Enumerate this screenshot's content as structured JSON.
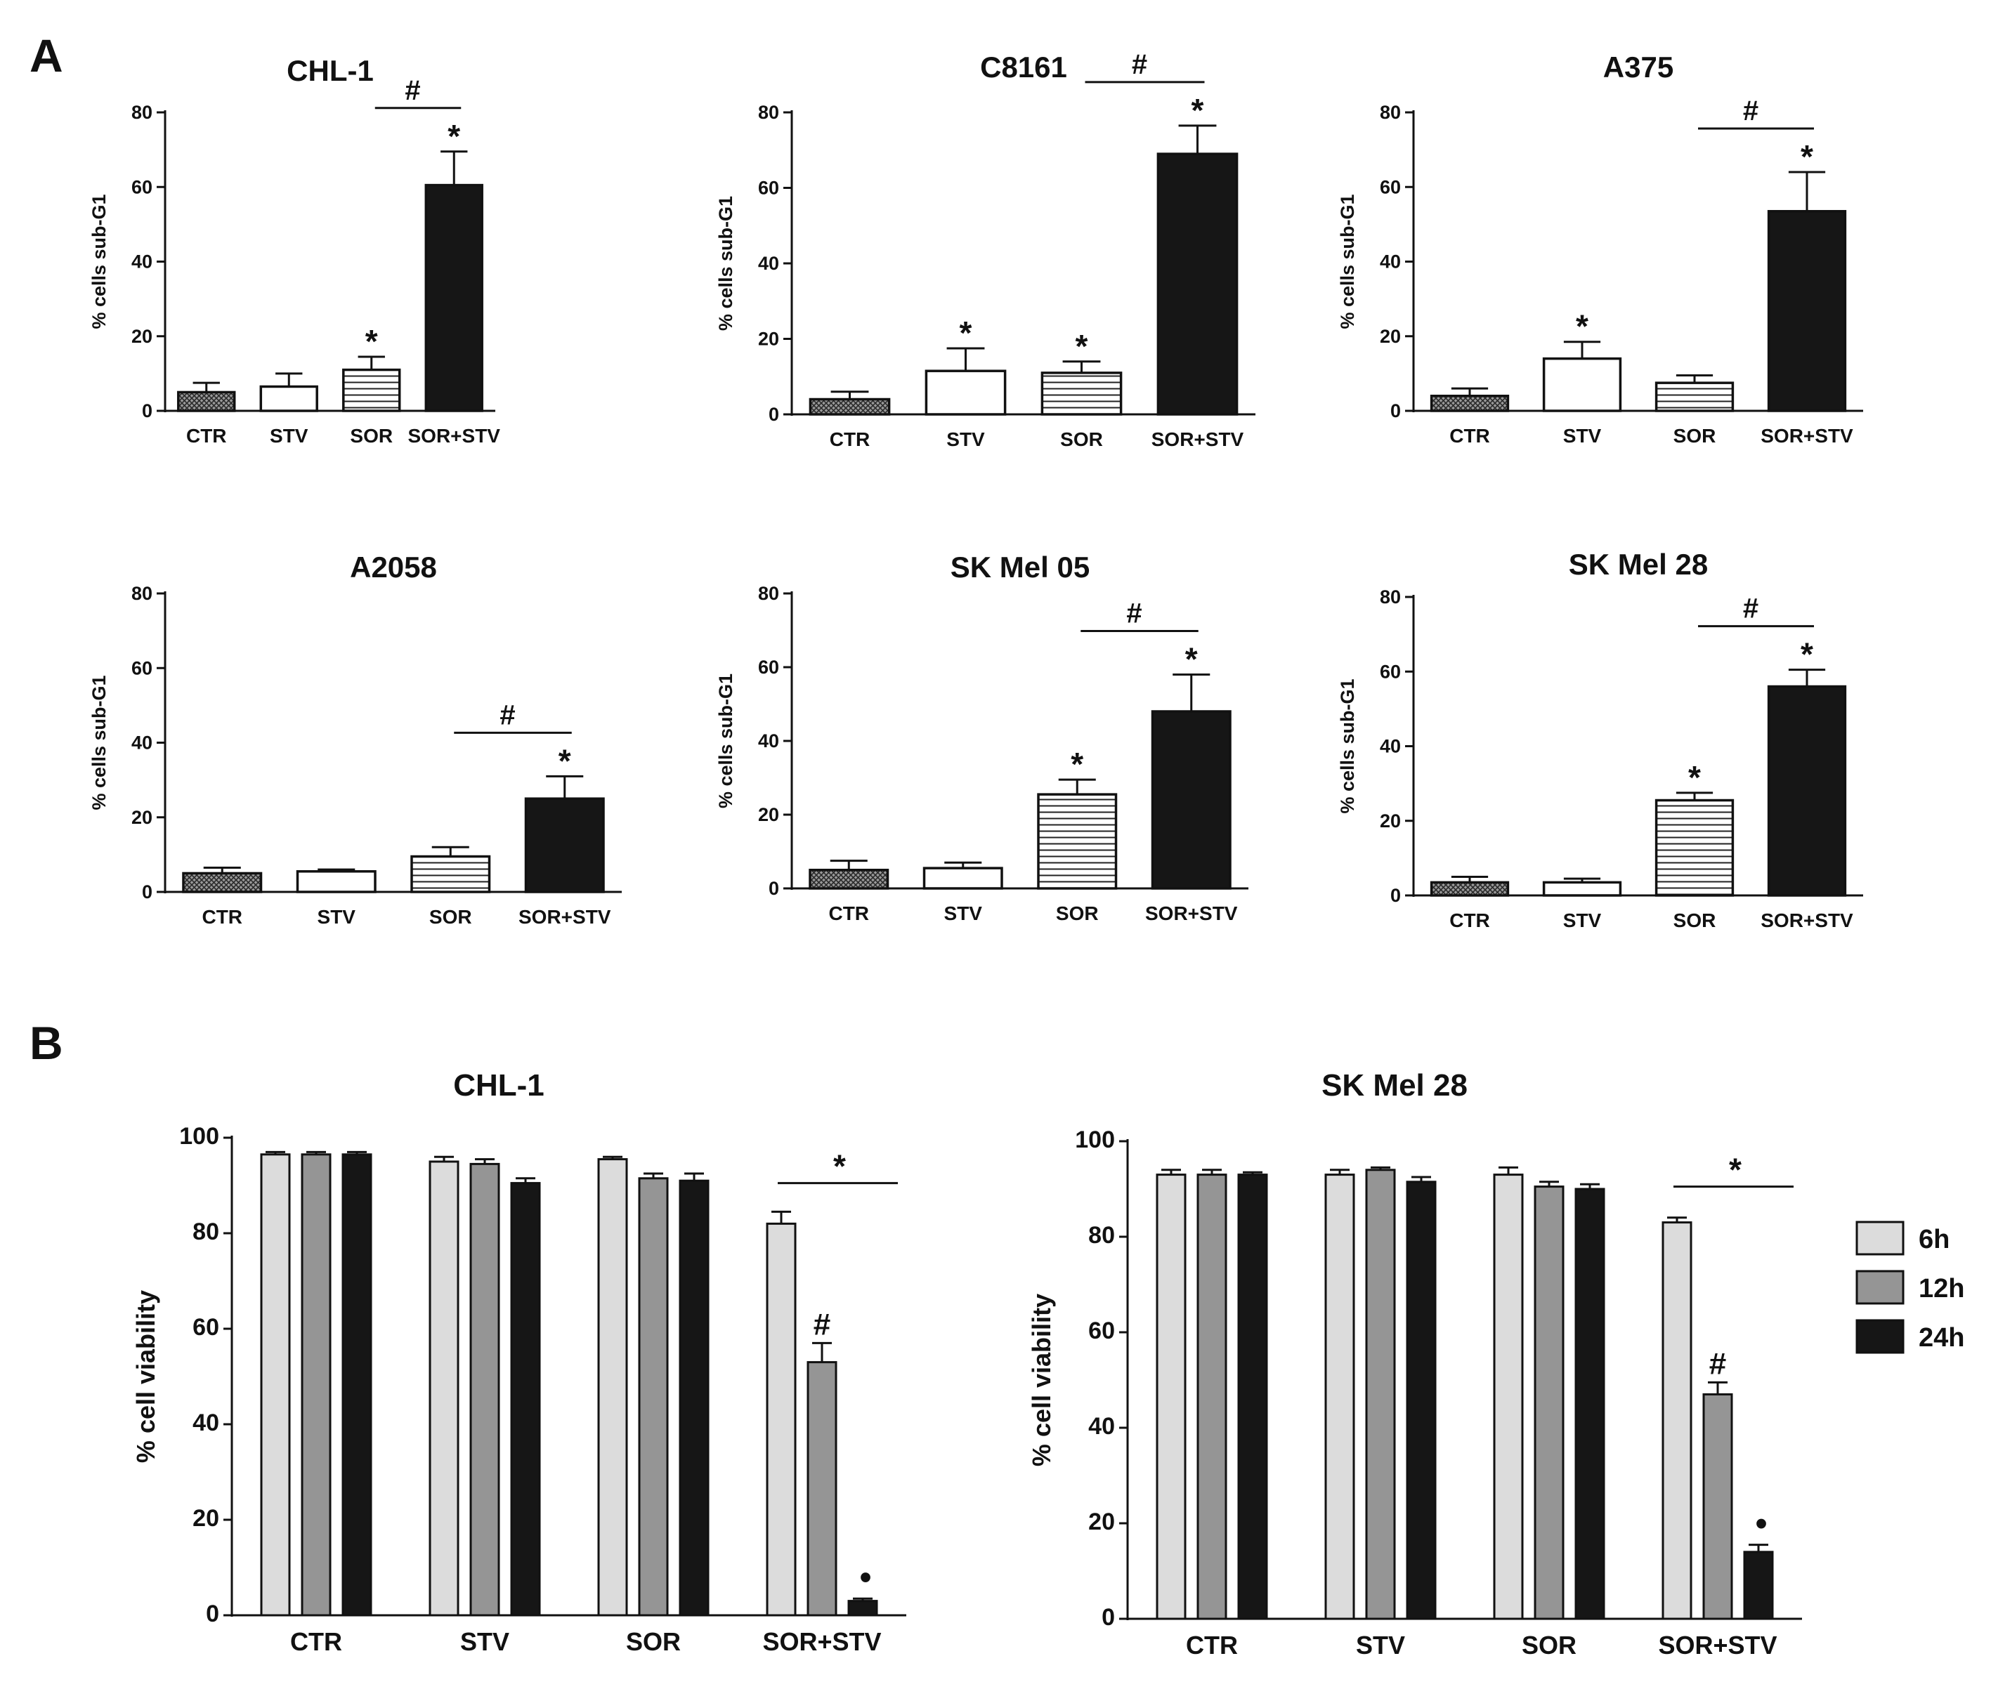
{
  "panel_a_label": "A",
  "panel_b_label": "B",
  "colors": {
    "ink": "#111111",
    "black_bar": "#161616",
    "white_bar": "#ffffff",
    "light_gray": "#dcdcdc",
    "mid_gray": "#959595"
  },
  "chart_data": [
    {
      "id": "a1",
      "type": "bar",
      "title": "CHL-1",
      "ylabel": "% cells sub-G1",
      "ylim": [
        0,
        80
      ],
      "yticks": [
        0,
        20,
        40,
        60,
        80
      ],
      "categories": [
        "CTR",
        "STV",
        "SOR",
        "SOR+STV"
      ],
      "values": [
        5,
        6.5,
        11,
        60.5
      ],
      "errors": [
        2.5,
        3.5,
        3.5,
        9
      ],
      "fills": [
        "crosshatch",
        "white",
        "stripes",
        "black"
      ],
      "star_marks": [
        "",
        "",
        "*",
        "*"
      ],
      "hash": {
        "text": "#",
        "from": 2,
        "to": 3
      }
    },
    {
      "id": "a2",
      "type": "bar",
      "title": "C8161",
      "ylabel": "% cells sub-G1",
      "ylim": [
        0,
        80
      ],
      "yticks": [
        0,
        20,
        40,
        60,
        80
      ],
      "categories": [
        "CTR",
        "STV",
        "SOR",
        "SOR+STV"
      ],
      "values": [
        4,
        11.5,
        11,
        69
      ],
      "errors": [
        2,
        6,
        3,
        7.5
      ],
      "fills": [
        "crosshatch",
        "white",
        "stripes",
        "black"
      ],
      "star_marks": [
        "",
        "*",
        "*",
        "*"
      ],
      "hash": {
        "text": "#",
        "from": 2,
        "to": 3
      }
    },
    {
      "id": "a3",
      "type": "bar",
      "title": "A375",
      "ylabel": "% cells sub-G1",
      "ylim": [
        0,
        80
      ],
      "yticks": [
        0,
        20,
        40,
        60,
        80
      ],
      "categories": [
        "CTR",
        "STV",
        "SOR",
        "SOR+STV"
      ],
      "values": [
        4,
        14,
        7.5,
        53.5
      ],
      "errors": [
        2,
        4.5,
        2,
        10.5
      ],
      "fills": [
        "crosshatch",
        "white",
        "stripes",
        "black"
      ],
      "star_marks": [
        "",
        "*",
        "",
        "*"
      ],
      "hash": {
        "text": "#",
        "from": 2,
        "to": 3
      }
    },
    {
      "id": "a4",
      "type": "bar",
      "title": "A2058",
      "ylabel": "% cells sub-G1",
      "ylim": [
        0,
        80
      ],
      "yticks": [
        0,
        20,
        40,
        60,
        80
      ],
      "categories": [
        "CTR",
        "STV",
        "SOR",
        "SOR+STV"
      ],
      "values": [
        5,
        5.5,
        9.5,
        25
      ],
      "errors": [
        1.5,
        0.5,
        2.5,
        6
      ],
      "fills": [
        "crosshatch",
        "white",
        "stripes",
        "black"
      ],
      "star_marks": [
        "",
        "",
        "",
        "*"
      ],
      "hash": {
        "text": "#",
        "from": 2,
        "to": 3
      }
    },
    {
      "id": "a5",
      "type": "bar",
      "title": "SK Mel 05",
      "ylabel": "% cells sub-G1",
      "ylim": [
        0,
        80
      ],
      "yticks": [
        0,
        20,
        40,
        60,
        80
      ],
      "categories": [
        "CTR",
        "STV",
        "SOR",
        "SOR+STV"
      ],
      "values": [
        5,
        5.5,
        25.5,
        48
      ],
      "errors": [
        2.5,
        1.5,
        4,
        10
      ],
      "fills": [
        "crosshatch",
        "white",
        "stripes",
        "black"
      ],
      "star_marks": [
        "",
        "",
        "*",
        "*"
      ],
      "hash": {
        "text": "#",
        "from": 2,
        "to": 3
      }
    },
    {
      "id": "a6",
      "type": "bar",
      "title": "SK Mel 28",
      "ylabel": "% cells sub-G1",
      "ylim": [
        0,
        80
      ],
      "yticks": [
        0,
        20,
        40,
        60,
        80
      ],
      "categories": [
        "CTR",
        "STV",
        "SOR",
        "SOR+STV"
      ],
      "values": [
        3.5,
        3.5,
        25.5,
        56
      ],
      "errors": [
        1.5,
        1,
        2,
        4.5
      ],
      "fills": [
        "crosshatch",
        "white",
        "stripes",
        "black"
      ],
      "star_marks": [
        "",
        "",
        "*",
        "*"
      ],
      "hash": {
        "text": "#",
        "from": 2,
        "to": 3
      }
    },
    {
      "id": "b1",
      "type": "bar",
      "title": "CHL-1",
      "ylabel": "% cell viability",
      "ylim": [
        0,
        100
      ],
      "yticks": [
        0,
        20,
        40,
        60,
        80,
        100
      ],
      "categories": [
        "CTR",
        "STV",
        "SOR",
        "SOR+STV"
      ],
      "series": [
        {
          "name": "6h",
          "values": [
            96.5,
            95,
            95.5,
            82
          ],
          "errors": [
            0.5,
            1,
            0.5,
            2.5
          ]
        },
        {
          "name": "12h",
          "values": [
            96.5,
            94.5,
            91.5,
            53
          ],
          "errors": [
            0.5,
            1,
            1,
            4
          ]
        },
        {
          "name": "24h",
          "values": [
            96.5,
            90.5,
            91,
            3
          ],
          "errors": [
            0.5,
            1,
            1.5,
            0.5
          ]
        }
      ],
      "star": "*",
      "hash_mark": "#",
      "dot_mark": "•"
    },
    {
      "id": "b2",
      "type": "bar",
      "title": "SK Mel 28",
      "ylabel": "% cell viability",
      "ylim": [
        0,
        100
      ],
      "yticks": [
        0,
        20,
        40,
        60,
        80,
        100
      ],
      "categories": [
        "CTR",
        "STV",
        "SOR",
        "SOR+STV"
      ],
      "series": [
        {
          "name": "6h",
          "values": [
            93,
            93,
            93,
            83
          ],
          "errors": [
            1,
            1,
            1.5,
            1
          ]
        },
        {
          "name": "12h",
          "values": [
            93,
            94,
            90.5,
            47
          ],
          "errors": [
            1,
            0.5,
            1,
            2.5
          ]
        },
        {
          "name": "24h",
          "values": [
            93,
            91.5,
            90,
            14
          ],
          "errors": [
            0.5,
            1,
            1,
            1.5
          ]
        }
      ],
      "star": "*",
      "hash_mark": "#",
      "dot_mark": "•",
      "legend": [
        "6h",
        "12h",
        "24h"
      ]
    }
  ]
}
